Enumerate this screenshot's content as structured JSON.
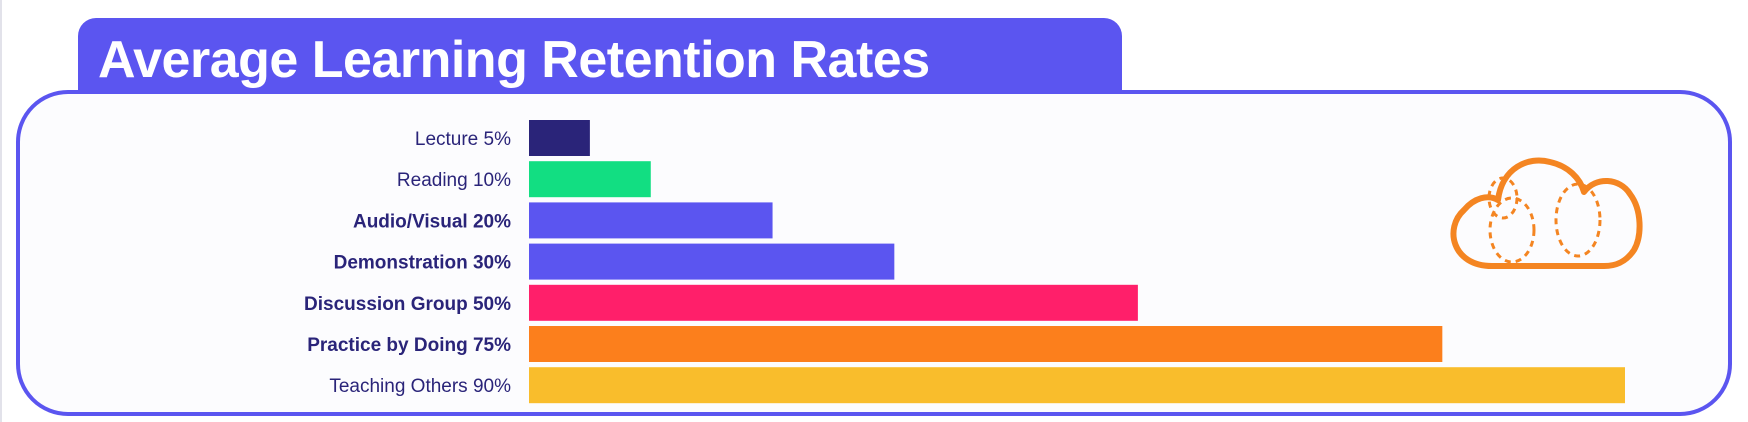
{
  "title": "Average Learning Retention Rates",
  "chart_data": {
    "type": "bar",
    "orientation": "horizontal",
    "title": "Average Learning Retention Rates",
    "categories": [
      "Lecture 5%",
      "Reading 10%",
      "Audio/Visual 20%",
      "Demonstration 30%",
      "Discussion Group 50%",
      "Practice by Doing 75%",
      "Teaching Others 90%"
    ],
    "values": [
      5,
      10,
      20,
      30,
      50,
      75,
      90
    ],
    "bold_labels": [
      false,
      false,
      true,
      true,
      true,
      true,
      false
    ],
    "colors": [
      "#2a2479",
      "#12de82",
      "#5b55f0",
      "#5b55f0",
      "#ff1f6a",
      "#fc7f1c",
      "#f9bd2c"
    ],
    "xlim": [
      0,
      90
    ],
    "grid": false,
    "legend": "none"
  },
  "icon": "cloud-icon",
  "colors": {
    "accent": "#5b55f0",
    "label_text": "#2a2479",
    "cloud": "#f48522"
  }
}
